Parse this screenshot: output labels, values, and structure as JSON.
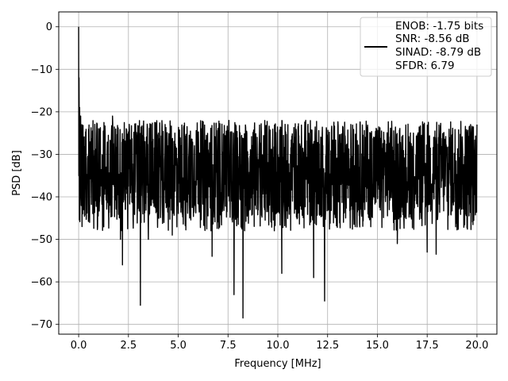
{
  "chart_data": {
    "type": "line",
    "title": "",
    "xlabel": "Frequency [MHz]",
    "ylabel": "PSD [dB]",
    "xlim": [
      -1,
      21
    ],
    "ylim": [
      -72.3,
      3.5
    ],
    "xticks": [
      0.0,
      2.5,
      5.0,
      7.5,
      10.0,
      12.5,
      15.0,
      17.5,
      20.0
    ],
    "xtick_labels": [
      "0.0",
      "2.5",
      "5.0",
      "7.5",
      "10.0",
      "12.5",
      "15.0",
      "17.5",
      "20.0"
    ],
    "yticks": [
      0,
      -10,
      -20,
      -30,
      -40,
      -50,
      -60,
      -70
    ],
    "ytick_labels": [
      "0",
      "−10",
      "−20",
      "−30",
      "−40",
      "−50",
      "−60",
      "−70"
    ],
    "grid": true,
    "legend_position": "top-right",
    "legend_lines": [
      "ENOB: -1.75 bits",
      "SNR: -8.56 dB",
      "SINAD: -8.79 dB",
      "SFDR: 6.79"
    ],
    "series_color": "#000000",
    "series": [
      {
        "description": "power spectral density",
        "noise_floor_mean_db": -33,
        "noise_band_db": [
          -45,
          -22
        ],
        "x_range": [
          0,
          20
        ],
        "notable_points": [
          {
            "x": 0.0,
            "y": 0
          },
          {
            "x": 0.02,
            "y": -12
          },
          {
            "x": 0.05,
            "y": -19
          },
          {
            "x": 0.1,
            "y": -21
          },
          {
            "x": 0.15,
            "y": -30
          },
          {
            "x": 0.2,
            "y": -44
          },
          {
            "x": 0.55,
            "y": -46
          },
          {
            "x": 1.7,
            "y": -21
          },
          {
            "x": 2.1,
            "y": -50
          },
          {
            "x": 2.2,
            "y": -56
          },
          {
            "x": 3.1,
            "y": -65.5
          },
          {
            "x": 3.5,
            "y": -50
          },
          {
            "x": 4.7,
            "y": -49
          },
          {
            "x": 6.7,
            "y": -54
          },
          {
            "x": 7.8,
            "y": -63
          },
          {
            "x": 8.25,
            "y": -68.5
          },
          {
            "x": 10.2,
            "y": -58
          },
          {
            "x": 11.4,
            "y": -22
          },
          {
            "x": 11.8,
            "y": -59
          },
          {
            "x": 12.35,
            "y": -64.5
          },
          {
            "x": 16.0,
            "y": -51
          },
          {
            "x": 17.5,
            "y": -53
          },
          {
            "x": 17.95,
            "y": -53.5
          },
          {
            "x": 20.0,
            "y": -23
          }
        ]
      }
    ]
  }
}
